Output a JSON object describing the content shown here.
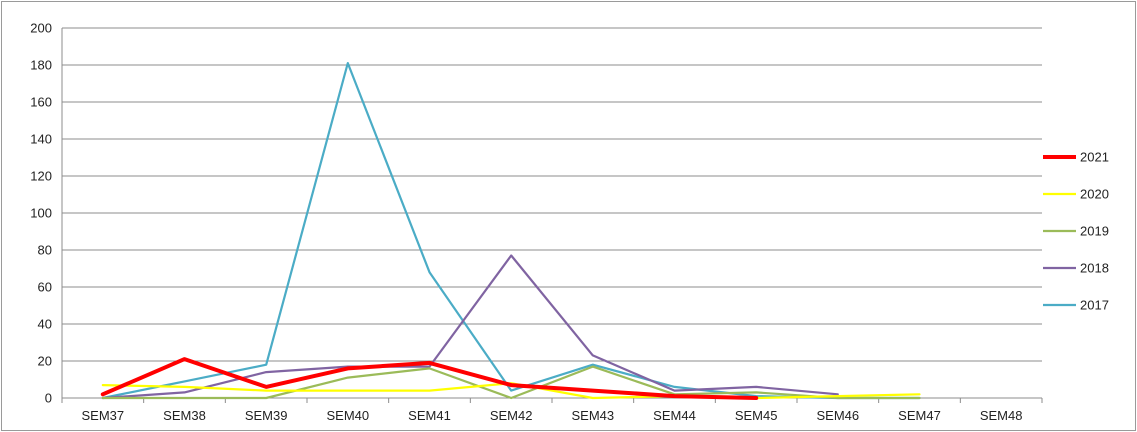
{
  "chart_data": {
    "type": "line",
    "title": "",
    "xlabel": "",
    "ylabel": "",
    "categories": [
      "SEM37",
      "SEM38",
      "SEM39",
      "SEM40",
      "SEM41",
      "SEM42",
      "SEM43",
      "SEM44",
      "SEM45",
      "SEM46",
      "SEM47",
      "SEM48"
    ],
    "ylim": [
      0,
      200
    ],
    "yticks": [
      0,
      20,
      40,
      60,
      80,
      100,
      120,
      140,
      160,
      180,
      200
    ],
    "grid": true,
    "legend_position": "right",
    "series": [
      {
        "name": "2021",
        "color": "#ff0000",
        "emphasis": true,
        "values": [
          2,
          21,
          6,
          16,
          19,
          7,
          4,
          1,
          0,
          null,
          null,
          null
        ]
      },
      {
        "name": "2020",
        "color": "#ffff00",
        "values": [
          7,
          6,
          4,
          4,
          4,
          8,
          0,
          1,
          0,
          1,
          2,
          null
        ]
      },
      {
        "name": "2019",
        "color": "#9bbb59",
        "values": [
          0,
          0,
          0,
          11,
          16,
          0,
          17,
          2,
          3,
          0,
          0,
          null
        ]
      },
      {
        "name": "2018",
        "color": "#8064a2",
        "values": [
          0,
          3,
          14,
          17,
          17,
          77,
          23,
          4,
          6,
          2,
          null,
          null
        ]
      },
      {
        "name": "2017",
        "color": "#4bacc6",
        "values": [
          0,
          9,
          18,
          181,
          68,
          4,
          18,
          6,
          1,
          0,
          0,
          null
        ]
      }
    ]
  }
}
